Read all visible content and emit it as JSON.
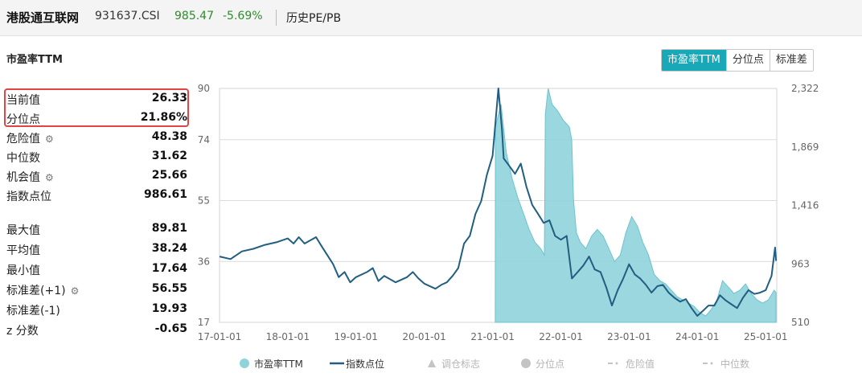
{
  "header": {
    "index_name": "港股通互联网",
    "index_code": "931637.CSI",
    "price": "985.47",
    "change": "-5.69%",
    "view": "历史PE/PB"
  },
  "section_title": "市盈率TTM",
  "tabs": [
    {
      "label": "市盈率TTM",
      "active": true
    },
    {
      "label": "分位点",
      "active": false
    },
    {
      "label": "标准差",
      "active": false
    }
  ],
  "stats_top": [
    {
      "label": "当前值",
      "value": "26.33",
      "gear": false
    },
    {
      "label": "分位点",
      "value": "21.86%",
      "gear": false
    },
    {
      "label": "危险值",
      "value": "48.38",
      "gear": true
    },
    {
      "label": "中位数",
      "value": "31.62",
      "gear": false
    },
    {
      "label": "机会值",
      "value": "25.66",
      "gear": true
    },
    {
      "label": "指数点位",
      "value": "986.61",
      "gear": false
    }
  ],
  "stats_bottom": [
    {
      "label": "最大值",
      "value": "89.81",
      "gear": false
    },
    {
      "label": "平均值",
      "value": "38.24",
      "gear": false
    },
    {
      "label": "最小值",
      "value": "17.64",
      "gear": false
    },
    {
      "label": "标准差(+1)",
      "value": "56.55",
      "gear": true
    },
    {
      "label": "标准差(-1)",
      "value": "19.93",
      "gear": false
    },
    {
      "label": "z 分数",
      "value": "-0.65",
      "gear": false
    }
  ],
  "colors": {
    "pe_fill": "#8fd3db",
    "pe_line": "#6cc4ce",
    "index_line": "#215e82",
    "accent": "#19a8b8",
    "highlight": "#e04545",
    "up_down_green": "#2e8b2e"
  },
  "chart_data": {
    "type": "line",
    "x_ticks": [
      "17-01-01",
      "18-01-01",
      "19-01-01",
      "20-01-01",
      "21-01-01",
      "22-01-01",
      "23-01-01",
      "24-01-01",
      "25-01-01"
    ],
    "x_range": [
      "2017-01-01",
      "2025-03-01"
    ],
    "left_axis": {
      "ticks": [
        "17",
        "36",
        "55",
        "74",
        "90"
      ],
      "range": [
        17,
        90
      ]
    },
    "right_axis": {
      "ticks": [
        "510",
        "963",
        "1,416",
        "1,869",
        "2,322"
      ],
      "range": [
        510,
        2322
      ]
    },
    "reference_lines": [
      36,
      55,
      74
    ],
    "legend": [
      {
        "label": "市盈率TTM",
        "marker": "circle",
        "color": "#8fd3db",
        "active": true
      },
      {
        "label": "指数点位",
        "marker": "line",
        "color": "#215e82",
        "active": true
      },
      {
        "label": "调仓标志",
        "marker": "triangle",
        "color": "#c4c4c4",
        "active": false
      },
      {
        "label": "分位点",
        "marker": "circle",
        "color": "#c4c4c4",
        "active": false
      },
      {
        "label": "危险值",
        "marker": "dash",
        "color": "#c4c4c4",
        "active": false
      },
      {
        "label": "中位数",
        "marker": "dash",
        "color": "#c4c4c4",
        "active": false
      }
    ],
    "series": [
      {
        "name": "市盈率TTM",
        "axis": "left",
        "points": [
          [
            "2021-01-15",
            17
          ],
          [
            "2021-01-16",
            78
          ],
          [
            "2021-02-15",
            85
          ],
          [
            "2021-03-15",
            70
          ],
          [
            "2021-04-15",
            62
          ],
          [
            "2021-05-15",
            56
          ],
          [
            "2021-06-15",
            51
          ],
          [
            "2021-07-15",
            46
          ],
          [
            "2021-08-15",
            42
          ],
          [
            "2021-09-15",
            40
          ],
          [
            "2021-10-05",
            38
          ],
          [
            "2021-10-10",
            82
          ],
          [
            "2021-10-25",
            90
          ],
          [
            "2021-11-15",
            85
          ],
          [
            "2021-12-15",
            83
          ],
          [
            "2022-01-15",
            80
          ],
          [
            "2022-02-15",
            78
          ],
          [
            "2022-02-28",
            74
          ],
          [
            "2022-03-10",
            55
          ],
          [
            "2022-03-25",
            45
          ],
          [
            "2022-04-15",
            42
          ],
          [
            "2022-05-15",
            40
          ],
          [
            "2022-06-15",
            44
          ],
          [
            "2022-07-15",
            46
          ],
          [
            "2022-08-15",
            44
          ],
          [
            "2022-09-15",
            40
          ],
          [
            "2022-10-15",
            36
          ],
          [
            "2022-11-15",
            38
          ],
          [
            "2022-12-15",
            45
          ],
          [
            "2023-01-15",
            50
          ],
          [
            "2023-02-15",
            47
          ],
          [
            "2023-03-15",
            42
          ],
          [
            "2023-04-15",
            38
          ],
          [
            "2023-05-15",
            32
          ],
          [
            "2023-06-15",
            30
          ],
          [
            "2023-07-15",
            29
          ],
          [
            "2023-08-15",
            27
          ],
          [
            "2023-09-15",
            25
          ],
          [
            "2023-10-15",
            24
          ],
          [
            "2023-11-15",
            23
          ],
          [
            "2023-12-15",
            22
          ],
          [
            "2024-01-15",
            20
          ],
          [
            "2024-02-15",
            19
          ],
          [
            "2024-03-15",
            21
          ],
          [
            "2024-04-15",
            24
          ],
          [
            "2024-05-15",
            30
          ],
          [
            "2024-06-15",
            28
          ],
          [
            "2024-07-15",
            26
          ],
          [
            "2024-08-15",
            27
          ],
          [
            "2024-09-15",
            29
          ],
          [
            "2024-10-15",
            26
          ],
          [
            "2024-11-15",
            24
          ],
          [
            "2024-12-15",
            23
          ],
          [
            "2025-01-15",
            24
          ],
          [
            "2025-02-15",
            27
          ],
          [
            "2025-02-25",
            26.33
          ]
        ]
      },
      {
        "name": "指数点位",
        "axis": "right",
        "points": [
          [
            "2017-01-01",
            1020
          ],
          [
            "2017-03-01",
            1000
          ],
          [
            "2017-05-01",
            1060
          ],
          [
            "2017-07-01",
            1080
          ],
          [
            "2017-09-01",
            1110
          ],
          [
            "2017-11-01",
            1130
          ],
          [
            "2018-01-01",
            1160
          ],
          [
            "2018-02-01",
            1120
          ],
          [
            "2018-03-01",
            1170
          ],
          [
            "2018-04-01",
            1120
          ],
          [
            "2018-06-01",
            1170
          ],
          [
            "2018-07-01",
            1100
          ],
          [
            "2018-09-01",
            960
          ],
          [
            "2018-10-01",
            860
          ],
          [
            "2018-11-01",
            900
          ],
          [
            "2018-12-01",
            820
          ],
          [
            "2019-01-01",
            860
          ],
          [
            "2019-03-01",
            900
          ],
          [
            "2019-04-01",
            930
          ],
          [
            "2019-05-01",
            830
          ],
          [
            "2019-06-01",
            870
          ],
          [
            "2019-08-01",
            820
          ],
          [
            "2019-10-01",
            860
          ],
          [
            "2019-11-01",
            900
          ],
          [
            "2019-12-01",
            850
          ],
          [
            "2020-01-01",
            810
          ],
          [
            "2020-03-01",
            770
          ],
          [
            "2020-04-01",
            800
          ],
          [
            "2020-05-01",
            820
          ],
          [
            "2020-06-01",
            870
          ],
          [
            "2020-07-01",
            930
          ],
          [
            "2020-08-01",
            1120
          ],
          [
            "2020-09-01",
            1180
          ],
          [
            "2020-10-01",
            1350
          ],
          [
            "2020-11-01",
            1450
          ],
          [
            "2020-12-01",
            1650
          ],
          [
            "2021-01-01",
            1800
          ],
          [
            "2021-02-01",
            2322
          ],
          [
            "2021-02-20",
            2000
          ],
          [
            "2021-03-01",
            1780
          ],
          [
            "2021-04-01",
            1720
          ],
          [
            "2021-05-01",
            1660
          ],
          [
            "2021-06-01",
            1740
          ],
          [
            "2021-07-01",
            1560
          ],
          [
            "2021-08-01",
            1420
          ],
          [
            "2021-09-01",
            1350
          ],
          [
            "2021-10-01",
            1280
          ],
          [
            "2021-11-01",
            1300
          ],
          [
            "2021-12-01",
            1180
          ],
          [
            "2022-01-01",
            1150
          ],
          [
            "2022-02-01",
            1180
          ],
          [
            "2022-03-01",
            850
          ],
          [
            "2022-04-01",
            900
          ],
          [
            "2022-05-01",
            950
          ],
          [
            "2022-06-01",
            1020
          ],
          [
            "2022-07-01",
            920
          ],
          [
            "2022-08-01",
            900
          ],
          [
            "2022-09-01",
            780
          ],
          [
            "2022-10-01",
            640
          ],
          [
            "2022-11-01",
            760
          ],
          [
            "2022-12-01",
            850
          ],
          [
            "2023-01-01",
            960
          ],
          [
            "2023-02-01",
            880
          ],
          [
            "2023-03-01",
            850
          ],
          [
            "2023-04-01",
            800
          ],
          [
            "2023-05-01",
            740
          ],
          [
            "2023-06-01",
            790
          ],
          [
            "2023-07-01",
            800
          ],
          [
            "2023-08-01",
            740
          ],
          [
            "2023-09-01",
            700
          ],
          [
            "2023-10-01",
            670
          ],
          [
            "2023-11-01",
            690
          ],
          [
            "2023-12-01",
            620
          ],
          [
            "2024-01-01",
            560
          ],
          [
            "2024-02-01",
            600
          ],
          [
            "2024-03-01",
            640
          ],
          [
            "2024-04-01",
            640
          ],
          [
            "2024-05-01",
            720
          ],
          [
            "2024-06-01",
            680
          ],
          [
            "2024-07-01",
            650
          ],
          [
            "2024-08-01",
            620
          ],
          [
            "2024-09-01",
            700
          ],
          [
            "2024-10-01",
            760
          ],
          [
            "2024-11-01",
            730
          ],
          [
            "2024-12-01",
            740
          ],
          [
            "2025-01-01",
            760
          ],
          [
            "2025-02-01",
            870
          ],
          [
            "2025-02-20",
            1090
          ],
          [
            "2025-02-25",
            986.61
          ]
        ]
      }
    ]
  }
}
